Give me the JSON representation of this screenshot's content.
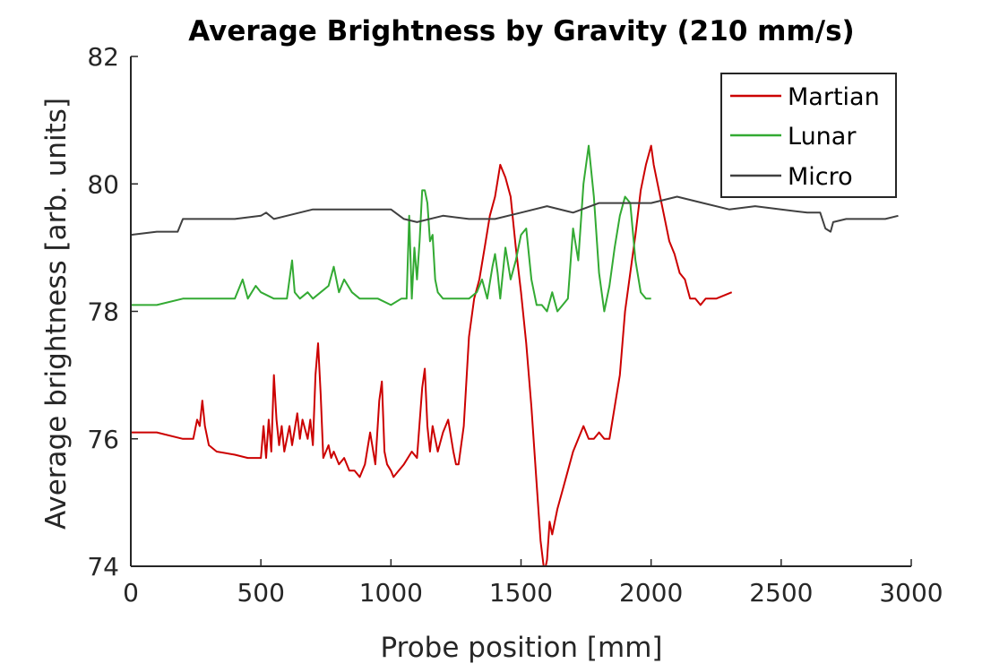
{
  "chart_data": {
    "type": "line",
    "title": "Average Brightness by Gravity (210 mm/s)",
    "xlabel": "Probe position [mm]",
    "ylabel": "Average brightness [arb. units]",
    "xlim": [
      0,
      3000
    ],
    "ylim": [
      74,
      82
    ],
    "xticks": [
      0,
      500,
      1000,
      1500,
      2000,
      2500,
      3000
    ],
    "yticks": [
      74,
      76,
      78,
      80,
      82
    ],
    "grid": false,
    "legend_position": "top-right",
    "series": [
      {
        "name": "Martian",
        "color": "#cc0000",
        "x": [
          0,
          100,
          200,
          240,
          255,
          265,
          275,
          285,
          300,
          330,
          400,
          450,
          480,
          500,
          510,
          520,
          530,
          540,
          550,
          560,
          570,
          580,
          590,
          600,
          610,
          620,
          640,
          650,
          660,
          680,
          690,
          700,
          710,
          720,
          730,
          740,
          760,
          770,
          780,
          800,
          820,
          840,
          860,
          880,
          900,
          920,
          940,
          955,
          965,
          975,
          985,
          1000,
          1010,
          1030,
          1050,
          1080,
          1100,
          1120,
          1130,
          1140,
          1150,
          1160,
          1180,
          1200,
          1220,
          1240,
          1250,
          1260,
          1280,
          1300,
          1320,
          1340,
          1360,
          1380,
          1400,
          1420,
          1440,
          1460,
          1480,
          1500,
          1520,
          1540,
          1560,
          1575,
          1590,
          1600,
          1610,
          1620,
          1640,
          1660,
          1680,
          1700,
          1720,
          1740,
          1760,
          1780,
          1800,
          1820,
          1840,
          1860,
          1880,
          1900,
          1920,
          1940,
          1960,
          1980,
          2000,
          2010,
          2030,
          2050,
          2070,
          2090,
          2110,
          2130,
          2150,
          2170,
          2190,
          2210,
          2250,
          2310
        ],
        "values": [
          76.1,
          76.1,
          76.0,
          76.0,
          76.3,
          76.2,
          76.6,
          76.2,
          75.9,
          75.8,
          75.75,
          75.7,
          75.7,
          75.7,
          76.2,
          75.7,
          76.3,
          75.8,
          77.0,
          76.3,
          75.9,
          76.2,
          75.8,
          76.0,
          76.2,
          75.9,
          76.4,
          76.0,
          76.3,
          76.0,
          76.3,
          75.9,
          77.0,
          77.5,
          76.7,
          75.7,
          75.9,
          75.7,
          75.8,
          75.6,
          75.7,
          75.5,
          75.5,
          75.4,
          75.6,
          76.1,
          75.6,
          76.6,
          76.9,
          75.8,
          75.6,
          75.5,
          75.4,
          75.5,
          75.6,
          75.8,
          75.7,
          76.8,
          77.1,
          76.2,
          75.8,
          76.2,
          75.8,
          76.1,
          76.3,
          75.8,
          75.6,
          75.6,
          76.2,
          77.6,
          78.2,
          78.5,
          79.0,
          79.5,
          79.8,
          80.3,
          80.1,
          79.8,
          79.0,
          78.3,
          77.5,
          76.5,
          75.3,
          74.4,
          73.9,
          74.1,
          74.7,
          74.5,
          74.9,
          75.2,
          75.5,
          75.8,
          76.0,
          76.2,
          76.0,
          76.0,
          76.1,
          76.0,
          76.0,
          76.5,
          77.0,
          78.0,
          78.6,
          79.2,
          79.9,
          80.3,
          80.6,
          80.3,
          79.9,
          79.5,
          79.1,
          78.9,
          78.6,
          78.5,
          78.2,
          78.2,
          78.1,
          78.2,
          78.2,
          78.3
        ],
        "label_key": "legend.martian"
      },
      {
        "name": "Lunar",
        "color": "#33aa33",
        "x": [
          0,
          100,
          200,
          300,
          400,
          430,
          450,
          480,
          500,
          550,
          600,
          610,
          620,
          630,
          650,
          680,
          700,
          730,
          760,
          780,
          800,
          820,
          850,
          880,
          900,
          950,
          1000,
          1040,
          1060,
          1070,
          1080,
          1090,
          1100,
          1110,
          1120,
          1130,
          1140,
          1150,
          1160,
          1170,
          1180,
          1200,
          1250,
          1300,
          1330,
          1350,
          1370,
          1390,
          1400,
          1410,
          1420,
          1440,
          1460,
          1480,
          1500,
          1520,
          1540,
          1560,
          1580,
          1600,
          1620,
          1640,
          1660,
          1680,
          1700,
          1720,
          1740,
          1760,
          1780,
          1800,
          1820,
          1840,
          1860,
          1880,
          1900,
          1920,
          1940,
          1960,
          1980,
          2000
        ],
        "values": [
          78.1,
          78.1,
          78.2,
          78.2,
          78.2,
          78.5,
          78.2,
          78.4,
          78.3,
          78.2,
          78.2,
          78.5,
          78.8,
          78.3,
          78.2,
          78.3,
          78.2,
          78.3,
          78.4,
          78.7,
          78.3,
          78.5,
          78.3,
          78.2,
          78.2,
          78.2,
          78.1,
          78.2,
          78.2,
          79.5,
          78.2,
          79.0,
          78.5,
          79.1,
          79.9,
          79.9,
          79.7,
          79.1,
          79.2,
          78.5,
          78.3,
          78.2,
          78.2,
          78.2,
          78.3,
          78.5,
          78.2,
          78.7,
          78.9,
          78.6,
          78.2,
          79.0,
          78.5,
          78.8,
          79.2,
          79.3,
          78.5,
          78.1,
          78.1,
          78.0,
          78.3,
          78.0,
          78.1,
          78.2,
          79.3,
          78.8,
          80.0,
          80.6,
          79.8,
          78.6,
          78.0,
          78.4,
          79.0,
          79.5,
          79.8,
          79.7,
          78.8,
          78.3,
          78.2,
          78.2
        ],
        "label_key": "legend.lunar"
      },
      {
        "name": "Micro",
        "color": "#404040",
        "x": [
          0,
          100,
          180,
          200,
          300,
          400,
          500,
          520,
          550,
          600,
          700,
          800,
          900,
          1000,
          1050,
          1100,
          1200,
          1300,
          1400,
          1500,
          1600,
          1700,
          1800,
          1900,
          2000,
          2100,
          2200,
          2300,
          2400,
          2500,
          2600,
          2650,
          2670,
          2690,
          2700,
          2750,
          2800,
          2900,
          2950
        ],
        "values": [
          79.2,
          79.25,
          79.25,
          79.45,
          79.45,
          79.45,
          79.5,
          79.55,
          79.45,
          79.5,
          79.6,
          79.6,
          79.6,
          79.6,
          79.45,
          79.4,
          79.5,
          79.45,
          79.45,
          79.55,
          79.65,
          79.55,
          79.7,
          79.7,
          79.7,
          79.8,
          79.7,
          79.6,
          79.65,
          79.6,
          79.55,
          79.55,
          79.3,
          79.25,
          79.4,
          79.45,
          79.45,
          79.45,
          79.5
        ],
        "label_key": "legend.micro"
      }
    ]
  },
  "legend": {
    "martian": "Martian",
    "lunar": "Lunar",
    "micro": "Micro"
  }
}
